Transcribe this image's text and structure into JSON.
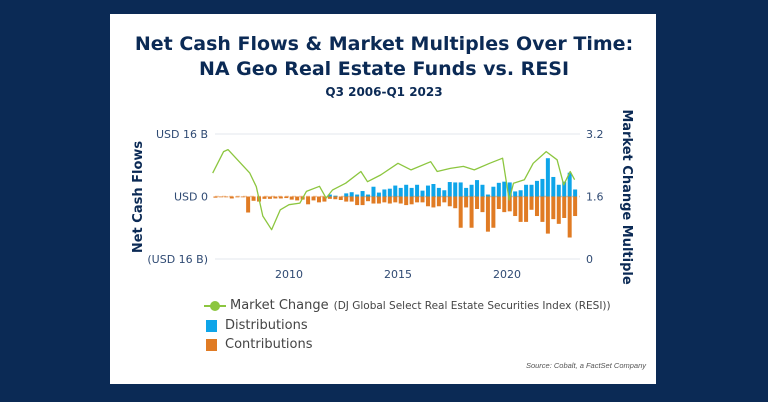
{
  "colors": {
    "background": "#0b2a55",
    "title": "#0b2a55",
    "market": "#8cc63f",
    "distributions": "#0ea5e9",
    "contributions": "#e07b24",
    "axis_text": "#2f4a73"
  },
  "chart_data": {
    "type": "bar+line",
    "title": "Net Cash Flows & Market Multiples Over Time:",
    "title_line2": "NA Geo Real Estate Funds vs. RESI",
    "subtitle": "Q3 2006-Q1 2023",
    "ylabel_left": "Net Cash Flows",
    "ylabel_right": "Market Change Multiple",
    "yticks_left": [
      "USD 16 B",
      "USD 0",
      "(USD 16 B)"
    ],
    "ylim_left_billions": [
      -16,
      16
    ],
    "yticks_right": [
      "3.2",
      "1.6",
      "0"
    ],
    "ylim_right": [
      0,
      3.2
    ],
    "xticks": [
      "2010",
      "2015",
      "2020"
    ],
    "grid": "horizontal",
    "legend_position": "bottom-left",
    "start_quarter": "2006 Q3",
    "distributions_billions": [
      0,
      0,
      0,
      0,
      0,
      0,
      0,
      0,
      0,
      0,
      0,
      0,
      0,
      0,
      0,
      0,
      0,
      0,
      0,
      0,
      0,
      0.5,
      0.2,
      0,
      0.8,
      1.1,
      0.5,
      1.4,
      0.5,
      2.5,
      1.0,
      1.8,
      2.0,
      2.8,
      2.2,
      3.0,
      2.2,
      3.0,
      1.5,
      2.8,
      3.2,
      2.2,
      1.6,
      3.7,
      3.6,
      3.6,
      2.2,
      3.0,
      4.2,
      3.0,
      0.5,
      2.5,
      3.5,
      3.8,
      3.6,
      1.3,
      1.6,
      3.0,
      3.0,
      4.0,
      4.5,
      9.8,
      5.0,
      3.0,
      3.8,
      6.1,
      1.8
    ],
    "contributions_billions": [
      -0.3,
      -0.2,
      -0.2,
      -0.5,
      -0.2,
      -0.2,
      -4.1,
      -1.1,
      -1.3,
      -0.6,
      -0.6,
      -0.5,
      -0.5,
      -0.4,
      -0.8,
      -1.0,
      -0.8,
      -2.0,
      -1.0,
      -1.5,
      -1.3,
      -0.6,
      -0.7,
      -0.9,
      -1.3,
      -1.3,
      -2.2,
      -2.2,
      -1.2,
      -1.8,
      -1.8,
      -1.5,
      -1.8,
      -1.5,
      -1.8,
      -2.2,
      -2.0,
      -1.5,
      -1.5,
      -2.5,
      -2.8,
      -2.5,
      -1.5,
      -2.5,
      -3.0,
      -8.0,
      -2.8,
      -8.0,
      -3.2,
      -4.0,
      -9.0,
      -8.0,
      -3.2,
      -4.0,
      -3.8,
      -5.0,
      -6.5,
      -6.5,
      -3.4,
      -5.0,
      -6.5,
      -9.5,
      -5.8,
      -7.0,
      -5.5,
      -10.5,
      -5.0
    ],
    "market_change": {
      "x": [
        2006.5,
        2007.0,
        2007.2,
        2007.7,
        2008.2,
        2008.5,
        2008.8,
        2009.2,
        2009.6,
        2010.0,
        2010.5,
        2010.8,
        2011.4,
        2011.7,
        2012.0,
        2012.6,
        2013.3,
        2013.6,
        2014.2,
        2015.0,
        2015.6,
        2016.5,
        2016.8,
        2017.4,
        2018.0,
        2018.5,
        2019.2,
        2019.8,
        2020.1,
        2020.3,
        2020.8,
        2021.2,
        2021.8,
        2022.3,
        2022.6,
        2022.9,
        2023.1
      ],
      "y": [
        2.2,
        2.75,
        2.8,
        2.5,
        2.2,
        1.85,
        1.1,
        0.75,
        1.26,
        1.39,
        1.43,
        1.73,
        1.86,
        1.56,
        1.77,
        1.94,
        2.24,
        1.98,
        2.15,
        2.45,
        2.28,
        2.49,
        2.24,
        2.32,
        2.37,
        2.28,
        2.45,
        2.58,
        1.51,
        1.94,
        2.03,
        2.45,
        2.75,
        2.54,
        1.9,
        2.24,
        2.03
      ]
    },
    "legend": {
      "market": "Market Change",
      "market_detail": "(DJ Global Select Real Estate Securities Index (RESI))",
      "distributions": "Distributions",
      "contributions": "Contributions"
    }
  },
  "source": "Source: Cobalt, a FactSet Company"
}
